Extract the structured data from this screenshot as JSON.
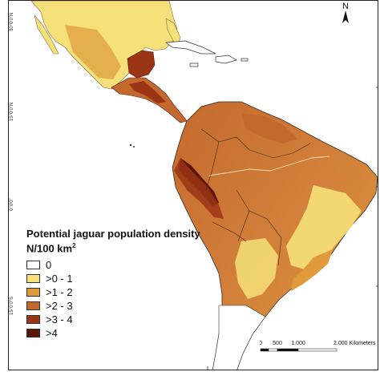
{
  "map": {
    "lat_labels": [
      "30°0'0\"N",
      "15°0'0\"N",
      "0°0'0\"",
      "15°0'0\"S"
    ],
    "north_label": "N",
    "colors": {
      "ocean": "#ffffff",
      "class_0": "#ffffff",
      "class_1": "#f5e07a",
      "class_2": "#e09a3c",
      "class_3": "#c4692e",
      "class_4": "#9b3415",
      "class_5": "#5a1408",
      "border": "#3a2a1a"
    }
  },
  "legend": {
    "title": "Potential jaguar population density",
    "unit_base": "N/100 km",
    "unit_sup": "2",
    "items": [
      {
        "label": "0",
        "color": "#ffffff"
      },
      {
        "label": ">0 - 1",
        "color": "#f5e07a"
      },
      {
        "label": ">1 - 2",
        "color": "#e09a3c"
      },
      {
        "label": ">2 - 3",
        "color": "#c4692e"
      },
      {
        "label": ">3 - 4",
        "color": "#9b3415"
      },
      {
        "label": ">4",
        "color": "#5a1408"
      }
    ]
  },
  "scale": {
    "ticks": [
      "0",
      "500",
      "1.000",
      "2.000 Kilometers"
    ]
  }
}
